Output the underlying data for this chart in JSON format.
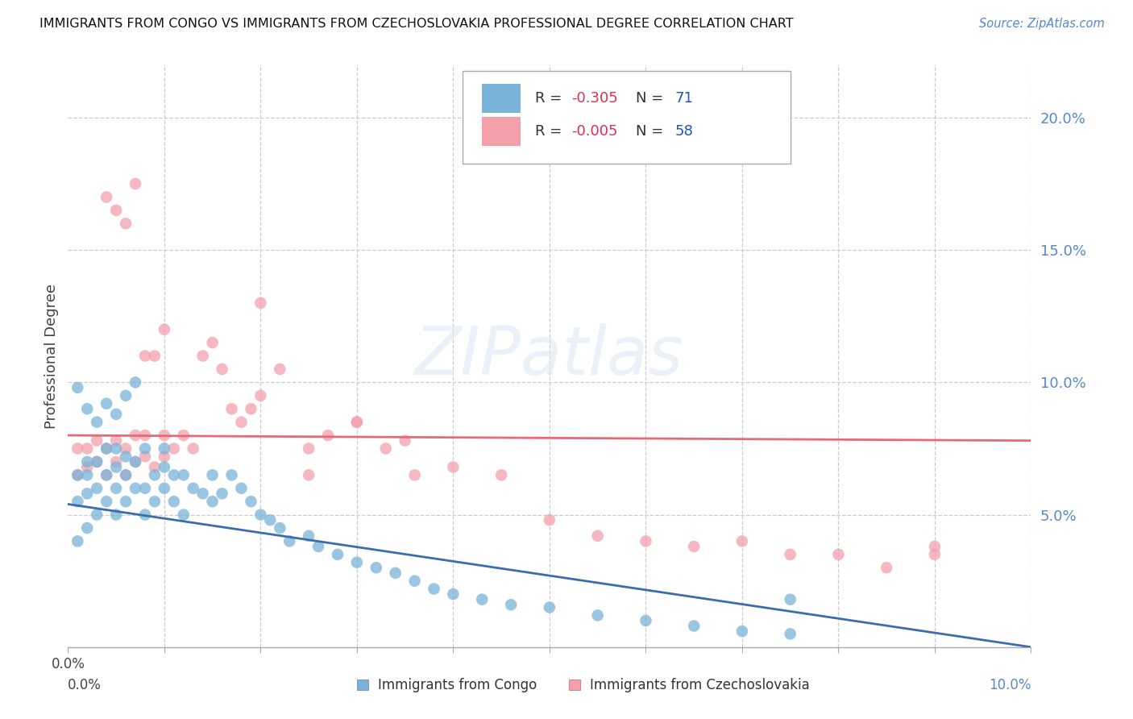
{
  "title": "IMMIGRANTS FROM CONGO VS IMMIGRANTS FROM CZECHOSLOVAKIA PROFESSIONAL DEGREE CORRELATION CHART",
  "source": "Source: ZipAtlas.com",
  "ylabel": "Professional Degree",
  "xlim": [
    0.0,
    0.1
  ],
  "ylim": [
    0.0,
    0.22
  ],
  "watermark_text": "ZIPatlas",
  "congo_color": "#7ab3d9",
  "czech_color": "#f4a0ab",
  "congo_trend_color": "#3a6eaa",
  "czech_trend_color": "#e8697a",
  "legend_r1": "R = ",
  "legend_v1": "-0.305",
  "legend_n1": "  N = ",
  "legend_nv1": "71",
  "legend_r2": "R = ",
  "legend_v2": "-0.005",
  "legend_n2": "  N = ",
  "legend_nv2": "58",
  "legend_color1": "#7ab3d9",
  "legend_color2": "#f4a0ab",
  "value_color": "#e05060",
  "n_color": "#333333",
  "nval_color": "#2255aa",
  "bottom_label1": "Immigrants from Congo",
  "bottom_label2": "Immigrants from Czechoslovakia",
  "xtick_left": "0.0%",
  "xtick_right": "10.0%",
  "ytick_right_vals": [
    0.05,
    0.1,
    0.15,
    0.2
  ],
  "ytick_right_labels": [
    "5.0%",
    "10.0%",
    "15.0%",
    "20.0%"
  ],
  "congo_x": [
    0.001,
    0.001,
    0.001,
    0.002,
    0.002,
    0.002,
    0.002,
    0.003,
    0.003,
    0.003,
    0.004,
    0.004,
    0.004,
    0.005,
    0.005,
    0.005,
    0.005,
    0.006,
    0.006,
    0.006,
    0.007,
    0.007,
    0.008,
    0.008,
    0.008,
    0.009,
    0.009,
    0.01,
    0.01,
    0.01,
    0.011,
    0.011,
    0.012,
    0.012,
    0.013,
    0.014,
    0.015,
    0.015,
    0.016,
    0.017,
    0.018,
    0.019,
    0.02,
    0.021,
    0.022,
    0.023,
    0.025,
    0.026,
    0.028,
    0.03,
    0.032,
    0.034,
    0.036,
    0.038,
    0.04,
    0.043,
    0.046,
    0.05,
    0.055,
    0.06,
    0.065,
    0.07,
    0.075,
    0.001,
    0.002,
    0.003,
    0.004,
    0.005,
    0.006,
    0.007,
    0.075
  ],
  "congo_y": [
    0.04,
    0.055,
    0.065,
    0.045,
    0.058,
    0.065,
    0.07,
    0.05,
    0.06,
    0.07,
    0.055,
    0.065,
    0.075,
    0.05,
    0.06,
    0.068,
    0.075,
    0.055,
    0.065,
    0.072,
    0.06,
    0.07,
    0.05,
    0.06,
    0.075,
    0.055,
    0.065,
    0.06,
    0.068,
    0.075,
    0.055,
    0.065,
    0.05,
    0.065,
    0.06,
    0.058,
    0.055,
    0.065,
    0.058,
    0.065,
    0.06,
    0.055,
    0.05,
    0.048,
    0.045,
    0.04,
    0.042,
    0.038,
    0.035,
    0.032,
    0.03,
    0.028,
    0.025,
    0.022,
    0.02,
    0.018,
    0.016,
    0.015,
    0.012,
    0.01,
    0.008,
    0.006,
    0.005,
    0.098,
    0.09,
    0.085,
    0.092,
    0.088,
    0.095,
    0.1,
    0.018
  ],
  "czech_x": [
    0.001,
    0.001,
    0.002,
    0.002,
    0.003,
    0.003,
    0.004,
    0.004,
    0.005,
    0.005,
    0.006,
    0.006,
    0.007,
    0.007,
    0.008,
    0.008,
    0.009,
    0.01,
    0.01,
    0.011,
    0.012,
    0.013,
    0.014,
    0.015,
    0.016,
    0.017,
    0.018,
    0.019,
    0.02,
    0.022,
    0.025,
    0.027,
    0.03,
    0.033,
    0.036,
    0.04,
    0.045,
    0.05,
    0.055,
    0.06,
    0.065,
    0.07,
    0.075,
    0.08,
    0.085,
    0.09,
    0.02,
    0.025,
    0.03,
    0.035,
    0.004,
    0.005,
    0.006,
    0.007,
    0.008,
    0.009,
    0.01,
    0.09
  ],
  "czech_y": [
    0.065,
    0.075,
    0.068,
    0.075,
    0.07,
    0.078,
    0.065,
    0.075,
    0.07,
    0.078,
    0.065,
    0.075,
    0.07,
    0.08,
    0.072,
    0.08,
    0.068,
    0.072,
    0.08,
    0.075,
    0.08,
    0.075,
    0.11,
    0.115,
    0.105,
    0.09,
    0.085,
    0.09,
    0.095,
    0.105,
    0.065,
    0.08,
    0.085,
    0.075,
    0.065,
    0.068,
    0.065,
    0.048,
    0.042,
    0.04,
    0.038,
    0.04,
    0.035,
    0.035,
    0.03,
    0.035,
    0.13,
    0.075,
    0.085,
    0.078,
    0.17,
    0.165,
    0.16,
    0.175,
    0.11,
    0.11,
    0.12,
    0.038
  ],
  "congo_trend_x": [
    0.0,
    0.1
  ],
  "congo_trend_y": [
    0.054,
    0.0
  ],
  "czech_trend_x": [
    0.0,
    0.1
  ],
  "czech_trend_y": [
    0.08,
    0.078
  ]
}
